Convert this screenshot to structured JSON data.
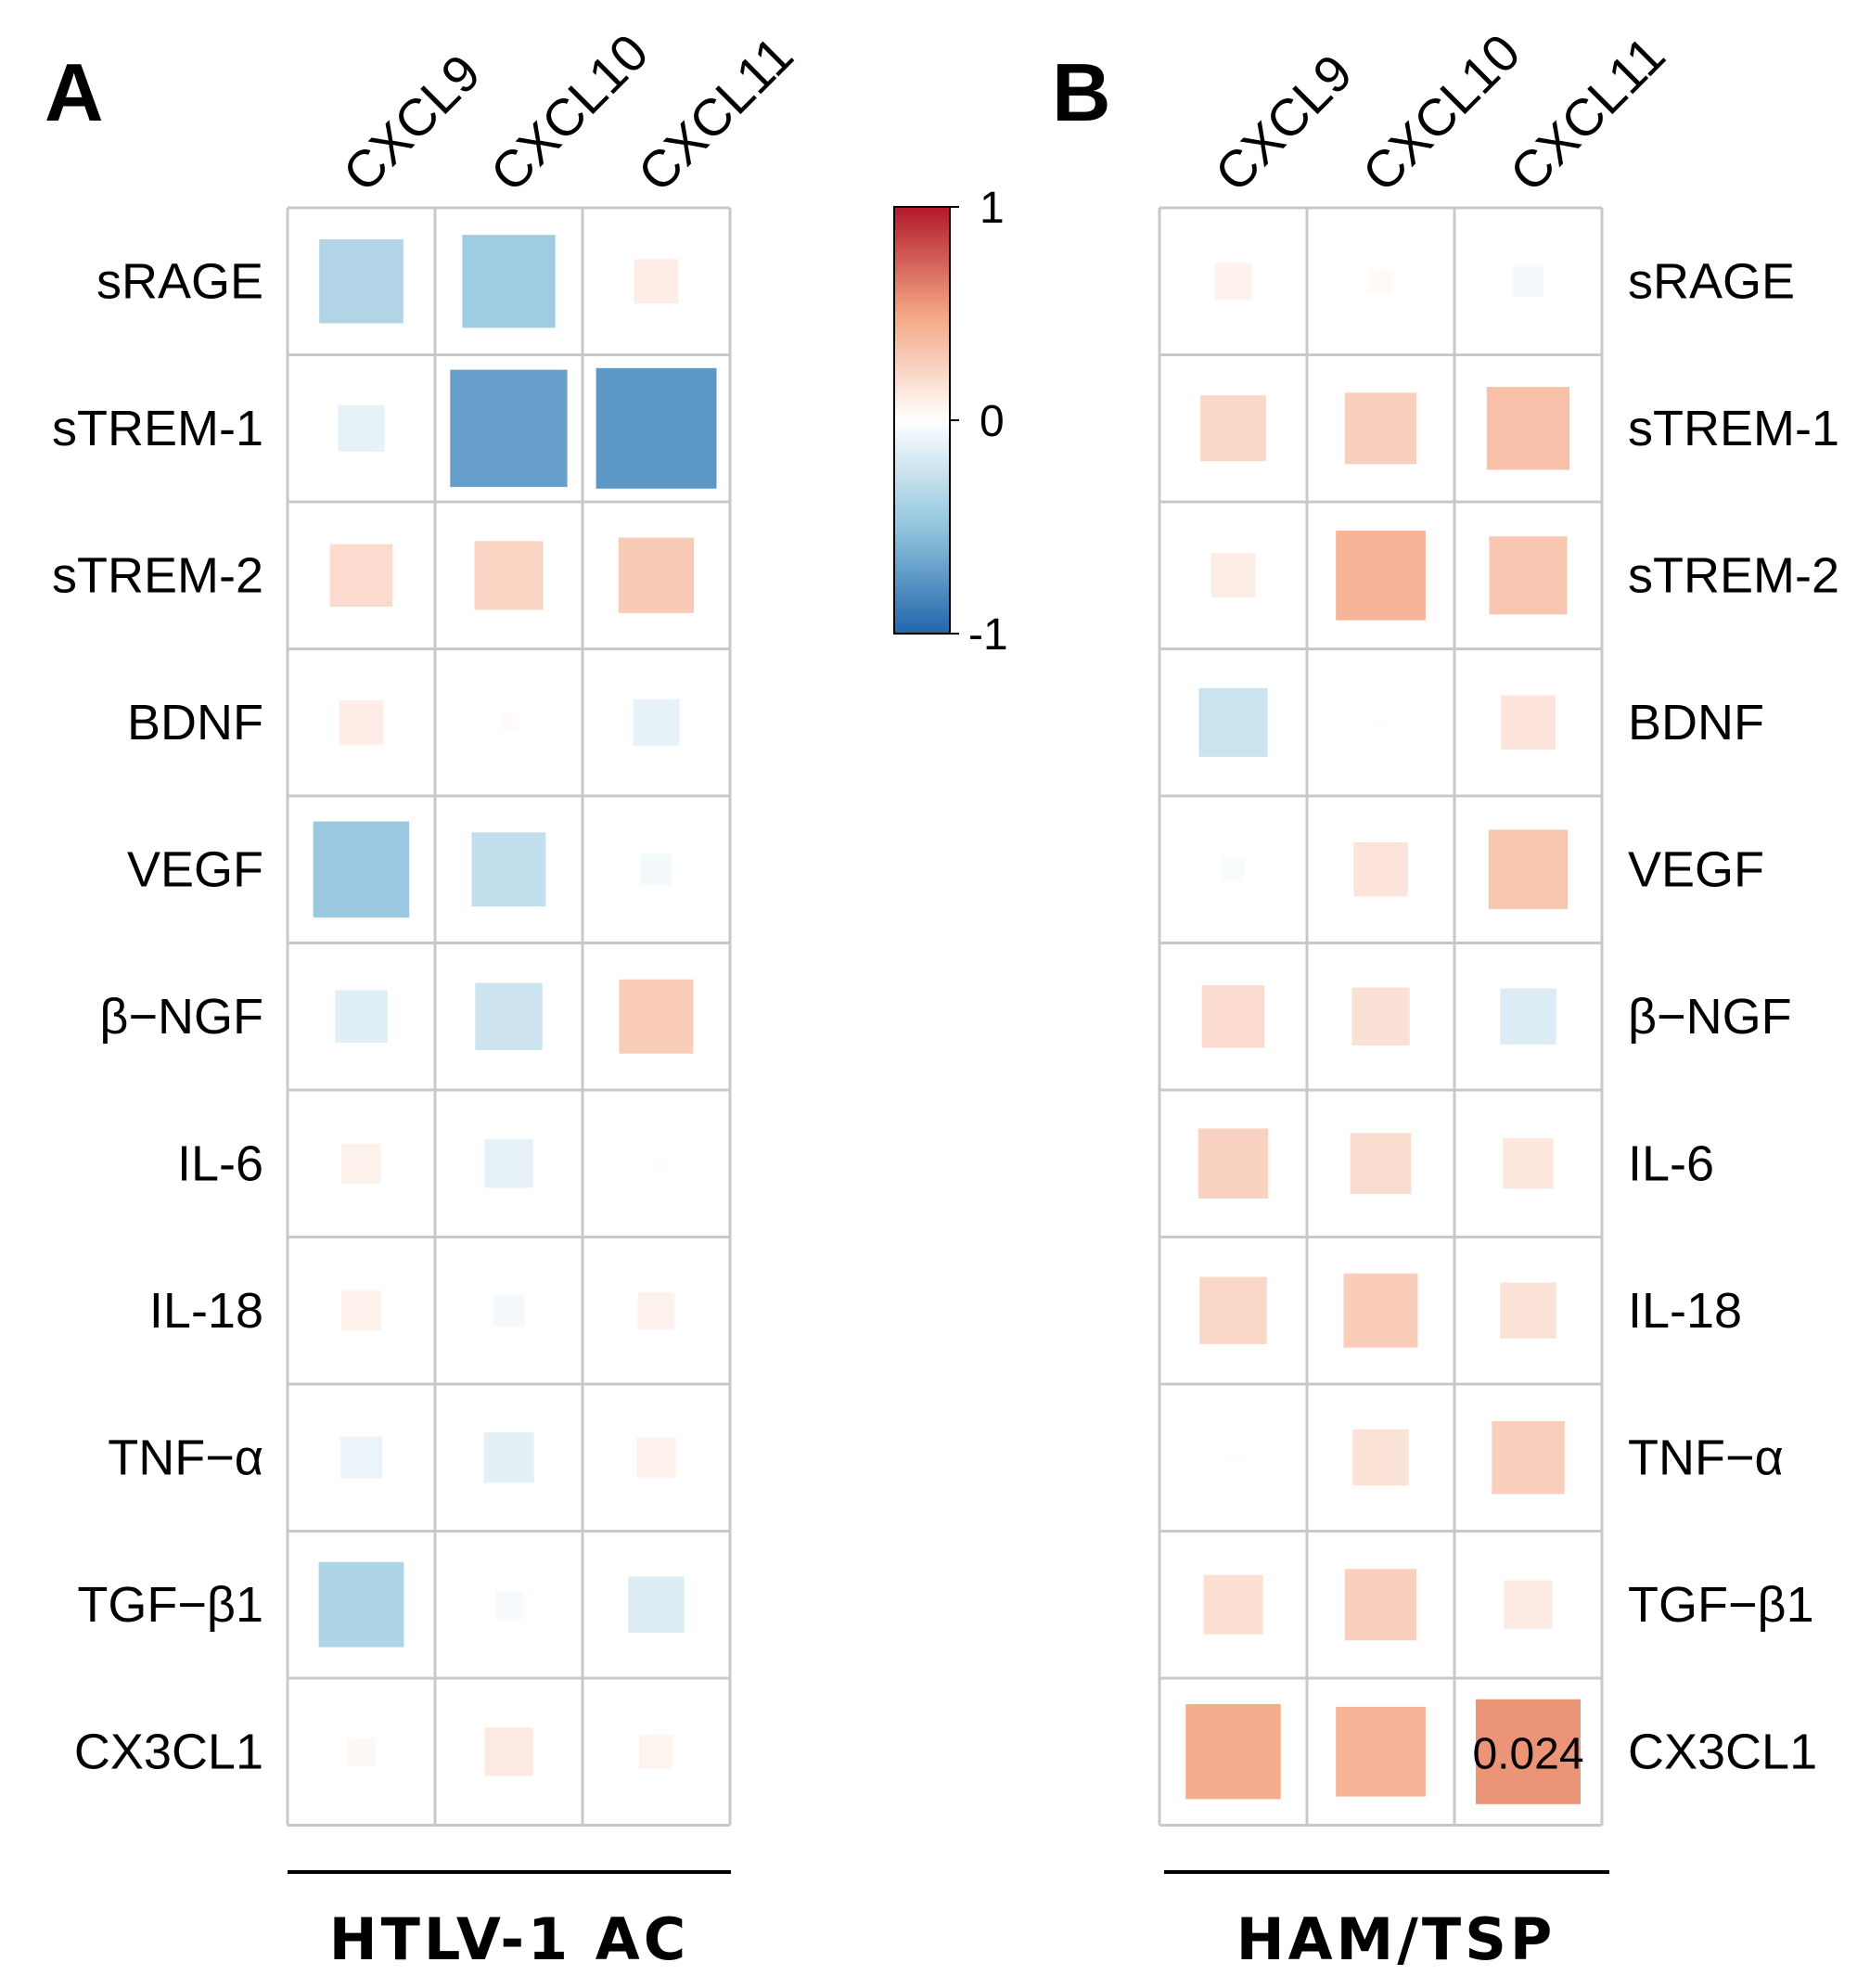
{
  "chart_data": {
    "type": "heatmap",
    "color_scale": {
      "min": -1,
      "max": 1,
      "ticks": [
        {
          "value": 1,
          "label": "1"
        },
        {
          "value": 0,
          "label": "0"
        },
        {
          "value": -1,
          "label": "-1"
        }
      ],
      "colors": {
        "negative": "#2166ac",
        "mid_negative": "#92c5de",
        "zero": "#ffffff",
        "mid_positive": "#f4a582",
        "positive": "#b2182b"
      }
    },
    "panels": [
      {
        "letter": "A",
        "group_label": "HTLV-1 AC",
        "columns": [
          "CXCL9",
          "CXCL10",
          "CXCL11"
        ],
        "rows": [
          "sRAGE",
          "sTREM-1",
          "sTREM-2",
          "BDNF",
          "VEGF",
          "β−NGF",
          "IL-6",
          "IL-18",
          "TNF−α",
          "TGF−β1",
          "CX3CL1"
        ],
        "row_label_side": "left",
        "values": [
          [
            -0.36,
            -0.44,
            0.1
          ],
          [
            -0.11,
            -0.7,
            -0.74
          ],
          [
            0.2,
            0.24,
            0.29
          ],
          [
            0.1,
            0.02,
            -0.11
          ],
          [
            -0.47,
            -0.28,
            -0.05
          ],
          [
            -0.14,
            -0.23,
            0.28
          ],
          [
            0.08,
            -0.12,
            0.01
          ],
          [
            0.08,
            -0.05,
            0.07
          ],
          [
            -0.09,
            -0.13,
            0.08
          ],
          [
            -0.37,
            -0.04,
            -0.16
          ],
          [
            0.04,
            0.12,
            0.06
          ]
        ],
        "annotations": []
      },
      {
        "letter": "B",
        "group_label": "HAM/TSP",
        "columns": [
          "CXCL9",
          "CXCL10",
          "CXCL11"
        ],
        "rows": [
          "sRAGE",
          "sTREM-1",
          "sTREM-2",
          "BDNF",
          "VEGF",
          "β−NGF",
          "IL-6",
          "IL-18",
          "TNF−α",
          "TGF−β1",
          "CX3CL1"
        ],
        "row_label_side": "right",
        "values": [
          [
            0.07,
            0.03,
            -0.05
          ],
          [
            0.22,
            0.26,
            0.35
          ],
          [
            0.1,
            0.41,
            0.31
          ],
          [
            -0.24,
            0.01,
            0.15
          ],
          [
            -0.03,
            0.15,
            0.32
          ],
          [
            0.2,
            0.17,
            -0.16
          ],
          [
            0.25,
            0.19,
            0.13
          ],
          [
            0.23,
            0.28,
            0.16
          ],
          [
            0.01,
            0.16,
            0.27
          ],
          [
            0.18,
            0.26,
            0.12
          ],
          [
            0.46,
            0.41,
            0.56
          ]
        ],
        "annotations": [
          {
            "row": 10,
            "col": 2,
            "text": "0.024"
          }
        ]
      }
    ]
  }
}
